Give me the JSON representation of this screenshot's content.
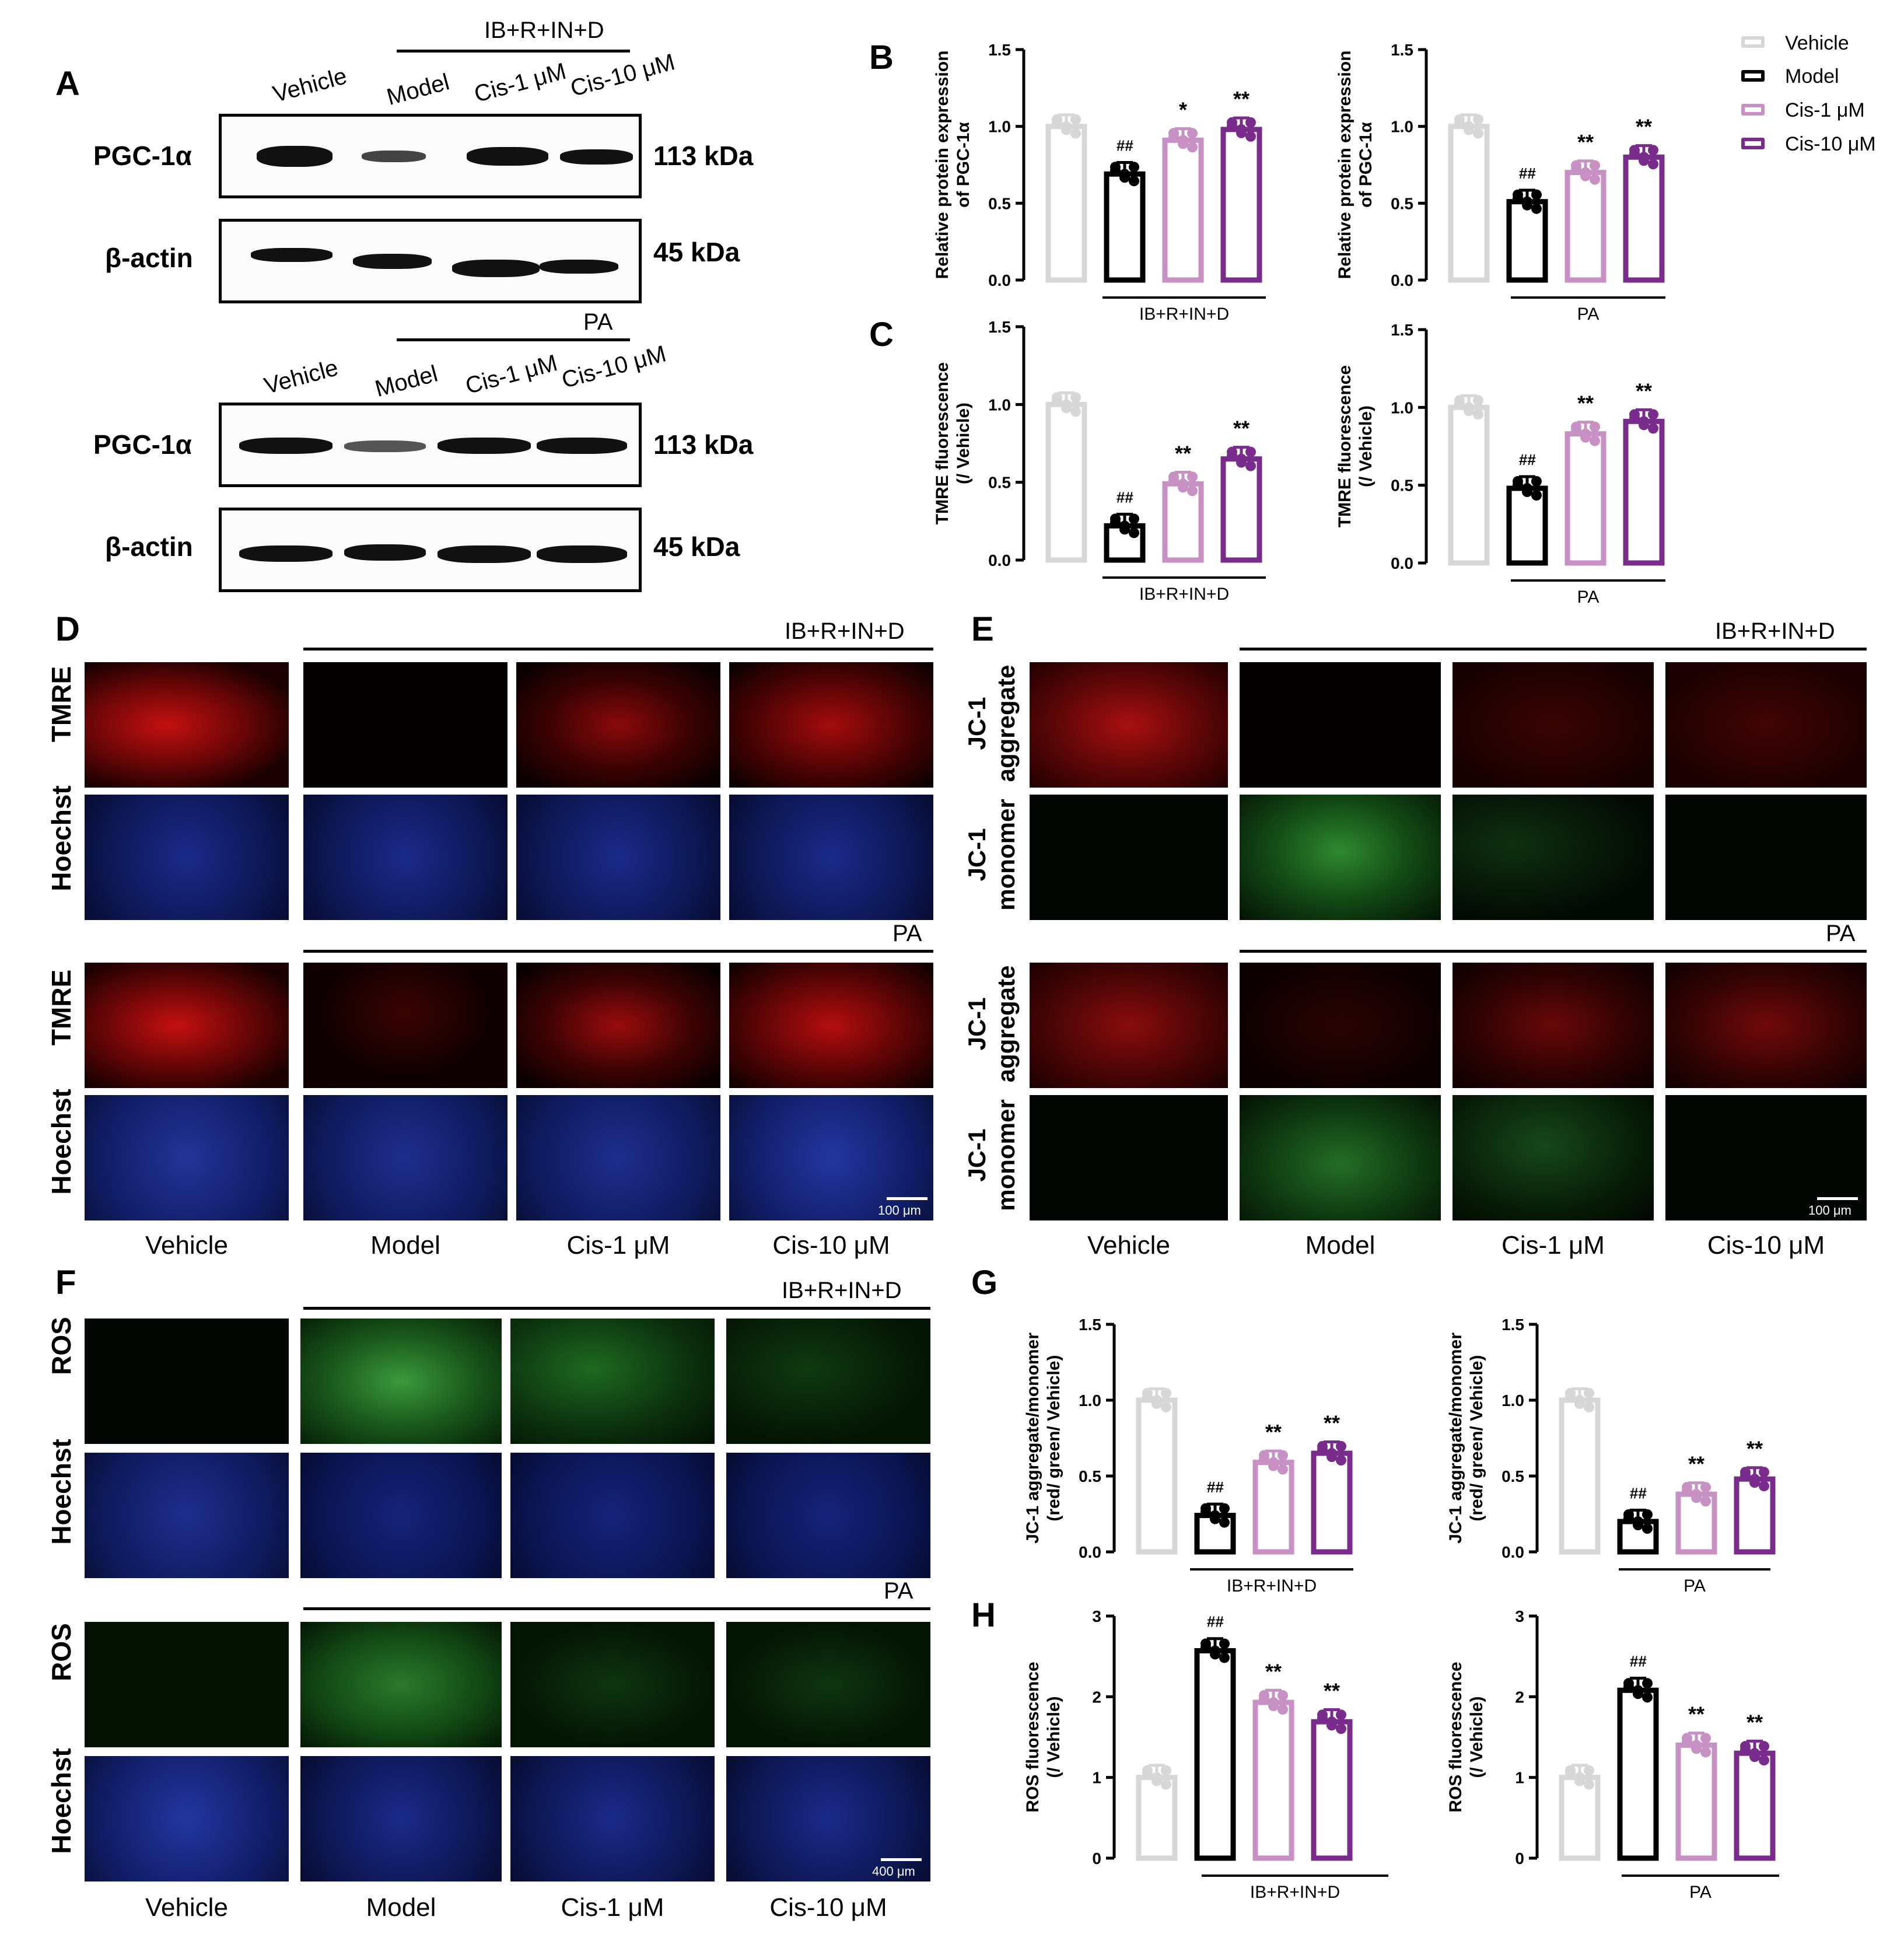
{
  "panel_letters": {
    "A": "A",
    "B": "B",
    "C": "C",
    "D": "D",
    "E": "E",
    "F": "F",
    "G": "G",
    "H": "H"
  },
  "blots": {
    "top": {
      "condition": "IB+R+IN+D"
    },
    "bottom": {
      "condition": "PA"
    },
    "lanes": [
      "Vehicle",
      "Model",
      "Cis-1 μM",
      "Cis-10 μM"
    ],
    "protein1": "PGC-1α",
    "protein2": "β-actin",
    "kda1": "113 kDa",
    "kda2": "45 kDa"
  },
  "legend": [
    {
      "label": "Vehicle",
      "color": "#d7d7d7"
    },
    {
      "label": "Model",
      "color": "#000000"
    },
    {
      "label": "Cis-1 μM",
      "color": "#c891c4"
    },
    {
      "label": "Cis-10 μM",
      "color": "#7a2c8d"
    }
  ],
  "micro": {
    "cond1": "IB+R+IN+D",
    "cond2": "PA",
    "labels_D": [
      "TMRE",
      "Hoechst",
      "TMRE",
      "Hoechst"
    ],
    "labels_E": [
      "JC-1\naggregate",
      "JC-1\nmonomer",
      "JC-1\naggregate",
      "JC-1\nmonomer"
    ],
    "labels_F": [
      "ROS",
      "Hoechst",
      "ROS",
      "Hoechst"
    ],
    "bottom": [
      "Vehicle",
      "Model",
      "Cis-1 μM",
      "Cis-10 μM"
    ],
    "scale_100": "100 μm",
    "scale_400": "400 μm"
  },
  "chart_data": [
    {
      "id": "B1",
      "type": "bar",
      "categories": [
        "Vehicle",
        "Model",
        "Cis-1 μM",
        "Cis-10 μM"
      ],
      "values": [
        1.0,
        0.69,
        0.91,
        0.98
      ],
      "ylabel": "Relative protein expression\nof PGC-1α",
      "ylim": [
        0,
        1.5
      ],
      "yticks": [
        "0.0",
        "0.5",
        "1.0",
        "1.5"
      ],
      "xlabel": "IB+R+IN+D",
      "annotations": [
        "",
        "##",
        "*",
        "**"
      ]
    },
    {
      "id": "B2",
      "type": "bar",
      "categories": [
        "Vehicle",
        "Model",
        "Cis-1 μM",
        "Cis-10 μM"
      ],
      "values": [
        1.0,
        0.51,
        0.7,
        0.8
      ],
      "ylabel": "Relative protein expression\nof PGC-1α",
      "ylim": [
        0,
        1.5
      ],
      "yticks": [
        "0.0",
        "0.5",
        "1.0",
        "1.5"
      ],
      "xlabel": "PA",
      "annotations": [
        "",
        "##",
        "**",
        "**"
      ]
    },
    {
      "id": "C1",
      "type": "bar",
      "categories": [
        "Vehicle",
        "Model",
        "Cis-1 μM",
        "Cis-10 μM"
      ],
      "values": [
        1.0,
        0.22,
        0.49,
        0.65
      ],
      "ylabel": "TMRE fluorescence\n(/ Vehicle)",
      "ylim": [
        0,
        1.5
      ],
      "yticks": [
        "0.0",
        "0.5",
        "1.0",
        "1.5"
      ],
      "xlabel": "IB+R+IN+D",
      "annotations": [
        "",
        "##",
        "**",
        "**"
      ]
    },
    {
      "id": "C2",
      "type": "bar",
      "categories": [
        "Vehicle",
        "Model",
        "Cis-1 μM",
        "Cis-10 μM"
      ],
      "values": [
        1.0,
        0.48,
        0.83,
        0.91
      ],
      "ylabel": "TMRE fluorescence\n(/ Vehicle)",
      "ylim": [
        0,
        1.5
      ],
      "yticks": [
        "0.0",
        "0.5",
        "1.0",
        "1.5"
      ],
      "xlabel": "PA",
      "annotations": [
        "",
        "##",
        "**",
        "**"
      ]
    },
    {
      "id": "G1",
      "type": "bar",
      "categories": [
        "Vehicle",
        "Model",
        "Cis-1 μM",
        "Cis-10 μM"
      ],
      "values": [
        1.0,
        0.24,
        0.59,
        0.65
      ],
      "ylabel": "JC-1 aggregate/monomer\n(red/ green/ Vehicle)",
      "ylim": [
        0,
        1.5
      ],
      "yticks": [
        "0.0",
        "0.5",
        "1.0",
        "1.5"
      ],
      "xlabel": "IB+R+IN+D",
      "annotations": [
        "",
        "##",
        "**",
        "**"
      ]
    },
    {
      "id": "G2",
      "type": "bar",
      "categories": [
        "Vehicle",
        "Model",
        "Cis-1 μM",
        "Cis-10 μM"
      ],
      "values": [
        1.0,
        0.2,
        0.38,
        0.48
      ],
      "ylabel": "JC-1 aggregate/monomer\n(red/ green/ Vehicle)",
      "ylim": [
        0,
        1.5
      ],
      "yticks": [
        "0.0",
        "0.5",
        "1.0",
        "1.5"
      ],
      "xlabel": "PA",
      "annotations": [
        "",
        "##",
        "**",
        "**"
      ]
    },
    {
      "id": "H1",
      "type": "bar",
      "categories": [
        "Vehicle",
        "Model",
        "Cis-1 μM",
        "Cis-10 μM"
      ],
      "values": [
        1.0,
        2.57,
        1.93,
        1.69
      ],
      "ylabel": "ROS fluorescence\n(/ Vehicle)",
      "ylim": [
        0,
        3
      ],
      "yticks": [
        "0",
        "1",
        "2",
        "3"
      ],
      "xlabel": "IB+R+IN+D",
      "annotations": [
        "",
        "##",
        "**",
        "**"
      ]
    },
    {
      "id": "H2",
      "type": "bar",
      "categories": [
        "Vehicle",
        "Model",
        "Cis-1 μM",
        "Cis-10 μM"
      ],
      "values": [
        1.0,
        2.08,
        1.4,
        1.3
      ],
      "ylabel": "ROS fluorescence\n(/ Vehicle)",
      "ylim": [
        0,
        3
      ],
      "yticks": [
        "0",
        "1",
        "2",
        "3"
      ],
      "xlabel": "PA",
      "annotations": [
        "",
        "##",
        "**",
        "**"
      ]
    }
  ]
}
